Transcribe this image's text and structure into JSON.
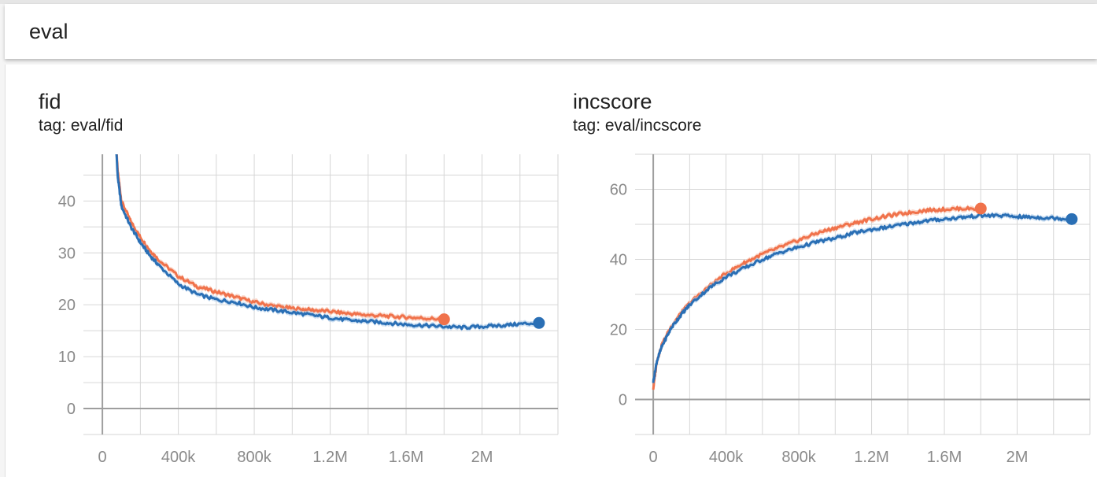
{
  "header": {
    "title": "eval"
  },
  "colors": {
    "orange": "#f0724b",
    "blue": "#2a6fb5",
    "blue_band": "#a8c8e8",
    "orange_band": "#f6b59e",
    "grid": "#d6d6d6",
    "axis": "#9e9e9e"
  },
  "charts": [
    {
      "title": "fid",
      "tag": "tag: eval/fid",
      "chart_data": {
        "type": "line",
        "xlim": [
          -100000,
          2400000
        ],
        "ylim": [
          -5,
          49
        ],
        "x_ticks": [
          0,
          400000,
          800000,
          1200000,
          1600000,
          2000000
        ],
        "x_tick_labels": [
          "0",
          "400k",
          "800k",
          "1.2M",
          "1.6M",
          "2M"
        ],
        "y_ticks": [
          0,
          10,
          20,
          30,
          40
        ],
        "y_tick_labels": [
          "0",
          "10",
          "20",
          "30",
          "40"
        ],
        "grid": true,
        "series": [
          {
            "color": "orange",
            "x": [
              60000,
              80000,
              100000,
              150000,
              200000,
              250000,
              300000,
              400000,
              500000,
              600000,
              700000,
              800000,
              900000,
              1000000,
              1100000,
              1200000,
              1300000,
              1400000,
              1500000,
              1600000,
              1700000,
              1800000
            ],
            "y": [
              60,
              46,
              40,
              36,
              33,
              30.5,
              28.5,
              25.5,
              23.5,
              22.5,
              21.5,
              20.5,
              19.8,
              19.3,
              19,
              18.7,
              18.3,
              18,
              17.8,
              17.6,
              17.4,
              17.2
            ]
          },
          {
            "color": "blue",
            "x": [
              60000,
              80000,
              100000,
              150000,
              200000,
              250000,
              300000,
              400000,
              500000,
              600000,
              700000,
              800000,
              900000,
              1000000,
              1100000,
              1200000,
              1300000,
              1400000,
              1500000,
              1600000,
              1700000,
              1800000,
              1900000,
              2000000,
              2100000,
              2200000,
              2300000
            ],
            "y": [
              60,
              45,
              39,
              35,
              32,
              29.5,
              27.5,
              24,
              22,
              21,
              20.5,
              19.5,
              19,
              18.5,
              18,
              17.5,
              17,
              16.8,
              16.5,
              16.2,
              16,
              15.8,
              15.6,
              15.8,
              16,
              16.3,
              16.5
            ]
          }
        ]
      }
    },
    {
      "title": "incscore",
      "tag": "tag: eval/incscore",
      "chart_data": {
        "type": "line",
        "xlim": [
          -100000,
          2400000
        ],
        "ylim": [
          -10,
          70
        ],
        "x_ticks": [
          0,
          400000,
          800000,
          1200000,
          1600000,
          2000000
        ],
        "x_tick_labels": [
          "0",
          "400k",
          "800k",
          "1.2M",
          "1.6M",
          "2M"
        ],
        "y_ticks": [
          0,
          20,
          40,
          60
        ],
        "y_tick_labels": [
          "0",
          "20",
          "40",
          "60"
        ],
        "grid": true,
        "series": [
          {
            "color": "orange",
            "x": [
              0,
              20000,
              50000,
              100000,
              150000,
              200000,
              300000,
              400000,
              500000,
              600000,
              700000,
              800000,
              900000,
              1000000,
              1100000,
              1200000,
              1300000,
              1400000,
              1500000,
              1600000,
              1700000,
              1800000
            ],
            "y": [
              3,
              11,
              16,
              21,
              24.5,
              27.5,
              32,
              36,
              39,
              41.5,
              43.5,
              45.5,
              47.5,
              49,
              50.3,
              51.5,
              52.5,
              53.3,
              54,
              54.3,
              54.5,
              54.5
            ]
          },
          {
            "color": "blue",
            "x": [
              0,
              20000,
              50000,
              100000,
              150000,
              200000,
              300000,
              400000,
              500000,
              600000,
              700000,
              800000,
              900000,
              1000000,
              1100000,
              1200000,
              1300000,
              1400000,
              1500000,
              1600000,
              1700000,
              1800000,
              1900000,
              2000000,
              2100000,
              2200000,
              2300000
            ],
            "y": [
              5,
              11,
              15.5,
              20.5,
              24,
              27,
              31.5,
              35,
              37.5,
              40,
              42,
              43.5,
              45,
              46,
              47.5,
              48.5,
              49.3,
              50.2,
              51,
              51.5,
              52,
              52.5,
              52.5,
              52.2,
              52,
              51.8,
              51.5
            ]
          }
        ]
      }
    }
  ]
}
